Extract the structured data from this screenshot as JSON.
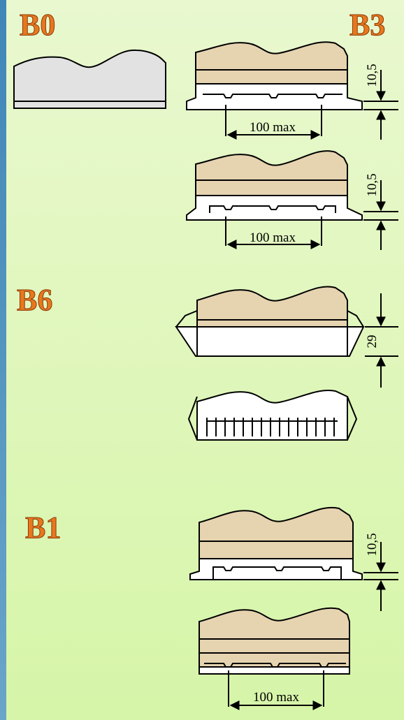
{
  "labels": {
    "b0": "B0",
    "b3": "B3",
    "b6": "B6",
    "b1": "B1"
  },
  "dimensions": {
    "height_labels": [
      "10,5",
      "10,5",
      "29",
      "10,5"
    ],
    "width_labels": [
      "100 max",
      "100 max",
      "100 max"
    ]
  }
}
